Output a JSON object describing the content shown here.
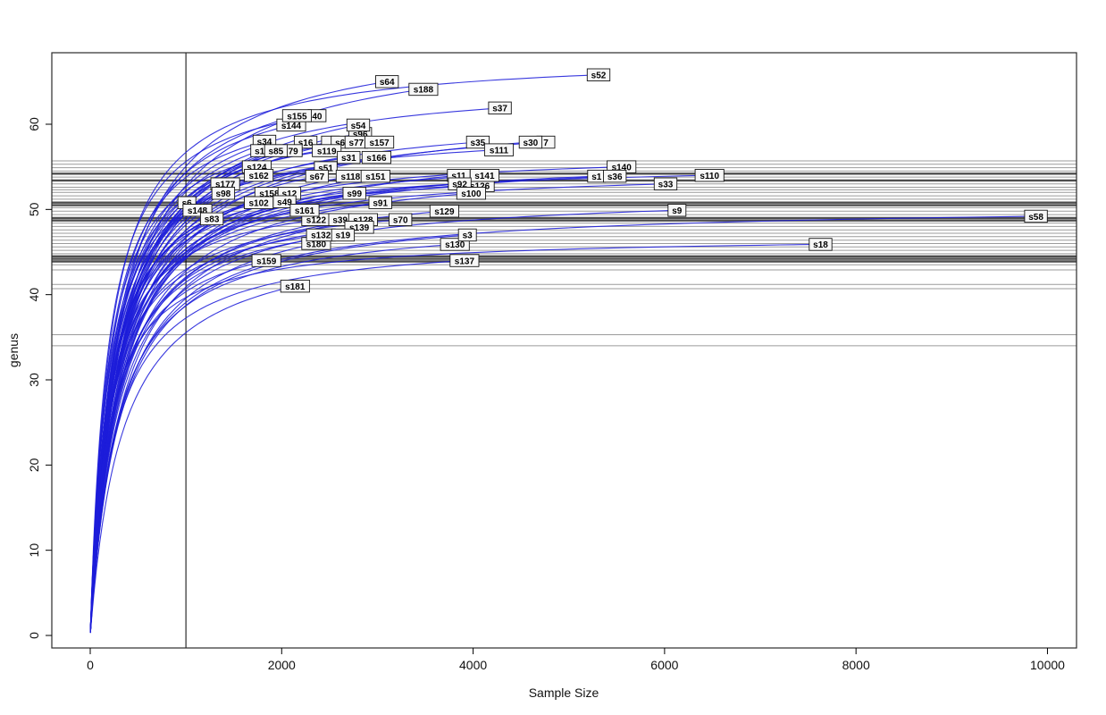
{
  "chart_data": {
    "type": "line",
    "title": "",
    "xlabel": "Sample Size",
    "ylabel": "genus",
    "xlim": [
      -400,
      10300
    ],
    "ylim": [
      -1.5,
      68.4
    ],
    "x_ticks": [
      0,
      2000,
      4000,
      6000,
      8000,
      10000
    ],
    "y_ticks": [
      0,
      10,
      20,
      30,
      40,
      50,
      60
    ],
    "grid": false,
    "legend": "none",
    "vline_x": 1000,
    "curve_model": "rarefaction saturating curve y = y_end*((B+x_end)/x_end)*x/(B+x)",
    "hlines": [
      {
        "y": 55.7,
        "shade": "light"
      },
      {
        "y": 55.3,
        "shade": "light"
      },
      {
        "y": 54.9,
        "shade": "light"
      },
      {
        "y": 54.5,
        "shade": "light"
      },
      {
        "y": 54.2,
        "shade": "dark"
      },
      {
        "y": 53.8,
        "shade": "light"
      },
      {
        "y": 53.4,
        "shade": "dark"
      },
      {
        "y": 53.0,
        "shade": "light"
      },
      {
        "y": 52.6,
        "shade": "light"
      },
      {
        "y": 52.3,
        "shade": "light"
      },
      {
        "y": 52.0,
        "shade": "light"
      },
      {
        "y": 51.6,
        "shade": "light"
      },
      {
        "y": 51.2,
        "shade": "light"
      },
      {
        "y": 50.8,
        "shade": "dark"
      },
      {
        "y": 50.5,
        "shade": "dark"
      },
      {
        "y": 50.2,
        "shade": "light"
      },
      {
        "y": 49.8,
        "shade": "light"
      },
      {
        "y": 49.4,
        "shade": "light"
      },
      {
        "y": 49.0,
        "shade": "dark"
      },
      {
        "y": 48.7,
        "shade": "dark"
      },
      {
        "y": 48.4,
        "shade": "light"
      },
      {
        "y": 48.0,
        "shade": "light"
      },
      {
        "y": 47.6,
        "shade": "light"
      },
      {
        "y": 47.2,
        "shade": "light"
      },
      {
        "y": 46.8,
        "shade": "light"
      },
      {
        "y": 46.4,
        "shade": "light"
      },
      {
        "y": 46.0,
        "shade": "light"
      },
      {
        "y": 45.6,
        "shade": "light"
      },
      {
        "y": 45.2,
        "shade": "light"
      },
      {
        "y": 44.8,
        "shade": "light"
      },
      {
        "y": 44.5,
        "shade": "dark"
      },
      {
        "y": 44.2,
        "shade": "dark"
      },
      {
        "y": 43.9,
        "shade": "dark"
      },
      {
        "y": 43.5,
        "shade": "light"
      },
      {
        "y": 42.9,
        "shade": "light"
      },
      {
        "y": 41.2,
        "shade": "light"
      },
      {
        "y": 40.7,
        "shade": "light"
      },
      {
        "y": 35.3,
        "shade": "light"
      },
      {
        "y": 34.0,
        "shade": "light"
      }
    ],
    "curves": [
      {
        "label": "40",
        "x_end": 2370,
        "y_end": 61.0
      },
      {
        "label": "s144",
        "x_end": 2100,
        "y_end": 59.9
      },
      {
        "label": "s155",
        "x_end": 2160,
        "y_end": 61.0
      },
      {
        "label": "s64",
        "x_end": 3100,
        "y_end": 65.0
      },
      {
        "label": "s188",
        "x_end": 3480,
        "y_end": 64.1
      },
      {
        "label": "s52",
        "x_end": 5310,
        "y_end": 65.8
      },
      {
        "label": "s37",
        "x_end": 4280,
        "y_end": 61.9
      },
      {
        "label": "s96",
        "x_end": 2820,
        "y_end": 58.9
      },
      {
        "label": "s54",
        "x_end": 2800,
        "y_end": 59.9
      },
      {
        "label": "s34",
        "x_end": 1820,
        "y_end": 58.0
      },
      {
        "label": "",
        "x_end": 2510,
        "y_end": 57.9
      },
      {
        "label": "s16",
        "x_end": 2250,
        "y_end": 57.9
      },
      {
        "label": "s6",
        "x_end": 2610,
        "y_end": 57.9
      },
      {
        "label": "s77",
        "x_end": 2780,
        "y_end": 57.9
      },
      {
        "label": "s157",
        "x_end": 3020,
        "y_end": 57.9
      },
      {
        "label": "s35",
        "x_end": 4050,
        "y_end": 57.9
      },
      {
        "label": "7",
        "x_end": 4760,
        "y_end": 57.9
      },
      {
        "label": "s30",
        "x_end": 4600,
        "y_end": 57.9
      },
      {
        "label": "s111",
        "x_end": 4270,
        "y_end": 57.0
      },
      {
        "label": "s1",
        "x_end": 1770,
        "y_end": 56.9
      },
      {
        "label": "79",
        "x_end": 2120,
        "y_end": 56.9
      },
      {
        "label": "s85",
        "x_end": 1940,
        "y_end": 56.9
      },
      {
        "label": "s119",
        "x_end": 2470,
        "y_end": 56.9
      },
      {
        "label": "s31",
        "x_end": 2700,
        "y_end": 56.1
      },
      {
        "label": "s166",
        "x_end": 2990,
        "y_end": 56.1
      },
      {
        "label": "s124",
        "x_end": 1740,
        "y_end": 55.0
      },
      {
        "label": "s51",
        "x_end": 2460,
        "y_end": 54.9
      },
      {
        "label": "s162",
        "x_end": 1760,
        "y_end": 54.0
      },
      {
        "label": "s67",
        "x_end": 2370,
        "y_end": 53.9
      },
      {
        "label": "s118",
        "x_end": 2720,
        "y_end": 53.9
      },
      {
        "label": "s151",
        "x_end": 2980,
        "y_end": 53.9
      },
      {
        "label": "s140",
        "x_end": 5550,
        "y_end": 55.0
      },
      {
        "label": "s1",
        "x_end": 5290,
        "y_end": 53.9
      },
      {
        "label": "s36",
        "x_end": 5480,
        "y_end": 53.9
      },
      {
        "label": "s11",
        "x_end": 3850,
        "y_end": 54.0
      },
      {
        "label": "s126",
        "x_end": 4070,
        "y_end": 52.8
      },
      {
        "label": "s141",
        "x_end": 4120,
        "y_end": 54.0
      },
      {
        "label": "s92",
        "x_end": 3860,
        "y_end": 53.0
      },
      {
        "label": "s100",
        "x_end": 3980,
        "y_end": 51.9
      },
      {
        "label": "s110",
        "x_end": 6470,
        "y_end": 54.0
      },
      {
        "label": "s33",
        "x_end": 6010,
        "y_end": 53.0
      },
      {
        "label": "s177",
        "x_end": 1410,
        "y_end": 53.0
      },
      {
        "label": "s98",
        "x_end": 1390,
        "y_end": 51.9
      },
      {
        "label": "s158",
        "x_end": 1870,
        "y_end": 51.9
      },
      {
        "label": "s12",
        "x_end": 2080,
        "y_end": 51.9
      },
      {
        "label": "s99",
        "x_end": 2760,
        "y_end": 51.9
      },
      {
        "label": "s6",
        "x_end": 1010,
        "y_end": 50.8
      },
      {
        "label": "s49",
        "x_end": 2030,
        "y_end": 50.9
      },
      {
        "label": "s102",
        "x_end": 1760,
        "y_end": 50.8
      },
      {
        "label": "s91",
        "x_end": 3030,
        "y_end": 50.8
      },
      {
        "label": "s129",
        "x_end": 3700,
        "y_end": 49.8
      },
      {
        "label": "s148",
        "x_end": 1120,
        "y_end": 49.9
      },
      {
        "label": "s122",
        "x_end": 2360,
        "y_end": 48.8
      },
      {
        "label": "s161",
        "x_end": 2240,
        "y_end": 49.9
      },
      {
        "label": "s83",
        "x_end": 1270,
        "y_end": 48.9
      },
      {
        "label": "s39",
        "x_end": 2610,
        "y_end": 48.8
      },
      {
        "label": "s128",
        "x_end": 2850,
        "y_end": 48.8
      },
      {
        "label": "s70",
        "x_end": 3240,
        "y_end": 48.8
      },
      {
        "label": "s139",
        "x_end": 2810,
        "y_end": 47.9
      },
      {
        "label": "s9",
        "x_end": 6130,
        "y_end": 49.9
      },
      {
        "label": "s180",
        "x_end": 2360,
        "y_end": 46.0
      },
      {
        "label": "s132",
        "x_end": 2410,
        "y_end": 47.0
      },
      {
        "label": "s19",
        "x_end": 2640,
        "y_end": 47.0
      },
      {
        "label": "s130",
        "x_end": 3810,
        "y_end": 45.9
      },
      {
        "label": "s3",
        "x_end": 3940,
        "y_end": 47.0
      },
      {
        "label": "s18",
        "x_end": 7630,
        "y_end": 45.9
      },
      {
        "label": "s159",
        "x_end": 1840,
        "y_end": 44.0
      },
      {
        "label": "s137",
        "x_end": 3910,
        "y_end": 44.0
      },
      {
        "label": "s58",
        "x_end": 9880,
        "y_end": 49.2
      },
      {
        "label": "s181",
        "x_end": 2140,
        "y_end": 41.0
      }
    ]
  },
  "figure": {
    "colors": {
      "curve": "#1c1cd9",
      "hline_light": "#9b9b9b",
      "hline_dark": "#4e4e4e",
      "vline": "#000000",
      "plot_border": "#2b2b2b",
      "label_fill": "#f7f7f7",
      "label_border": "#141414",
      "label_text": "#000000",
      "axis_text": "#111111",
      "background": "#ffffff"
    }
  }
}
